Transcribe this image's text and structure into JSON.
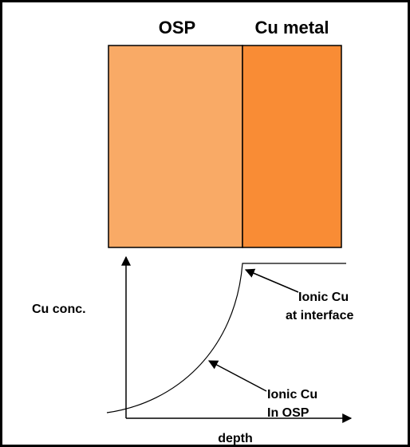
{
  "labels": {
    "osp": "OSP",
    "cu_metal": "Cu metal"
  },
  "graph": {
    "y_axis_label": "Cu conc.",
    "x_axis_label": "depth",
    "annotations": [
      {
        "lines": [
          "Ionic Cu",
          "at interface"
        ]
      },
      {
        "lines": [
          "Ionic Cu",
          "In OSP"
        ]
      }
    ]
  }
}
